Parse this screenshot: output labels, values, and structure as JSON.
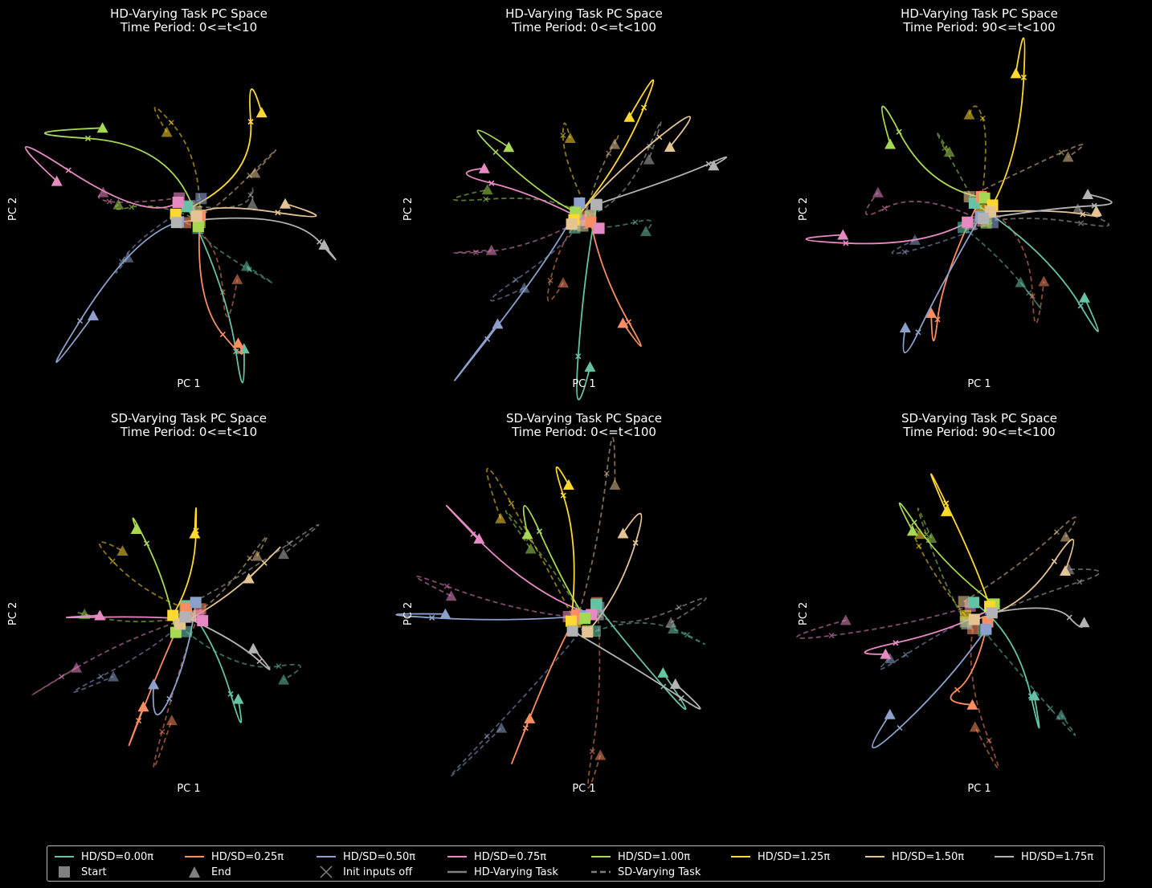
{
  "colors": {
    "hd_0_00": "#66c2a5",
    "hd_0_25": "#fc8d62",
    "hd_0_50": "#8da0cb",
    "hd_0_75": "#e78ac3",
    "hd_1_00": "#a6d854",
    "hd_1_25": "#ffd92f",
    "hd_1_50": "#e5c494",
    "hd_1_75": "#b3b3b3"
  },
  "chart_data": [
    {
      "type": "line",
      "title": "HD-Varying Task PC Space\nTime Period: 0<=t<10",
      "title_line1": "HD-Varying Task PC Space",
      "title_line2": "Time Period: 0<=t<10",
      "xlabel": "PC 1",
      "ylabel": "PC 2",
      "grid": false,
      "axes_visible": false
    },
    {
      "type": "line",
      "title": "HD-Varying Task PC Space\nTime Period: 0<=t<100",
      "title_line1": "HD-Varying Task PC Space",
      "title_line2": "Time Period: 0<=t<100",
      "xlabel": "PC 1",
      "ylabel": "PC 2",
      "grid": false,
      "axes_visible": false
    },
    {
      "type": "line",
      "title": "HD-Varying Task PC Space\nTime Period: 90<=t<100",
      "title_line1": "HD-Varying Task PC Space",
      "title_line2": "Time Period: 90<=t<100",
      "xlabel": "PC 1",
      "ylabel": "PC 2",
      "grid": false,
      "axes_visible": false
    },
    {
      "type": "line",
      "title": "SD-Varying Task PC Space\nTime Period: 0<=t<10",
      "title_line1": "SD-Varying Task PC Space",
      "title_line2": "Time Period: 0<=t<10",
      "xlabel": "PC 1",
      "ylabel": "PC 2",
      "grid": false,
      "axes_visible": false
    },
    {
      "type": "line",
      "title": "SD-Varying Task PC Space\nTime Period: 0<=t<100",
      "title_line1": "SD-Varying Task PC Space",
      "title_line2": "Time Period: 0<=t<100",
      "xlabel": "PC 1",
      "ylabel": "PC 2",
      "grid": false,
      "axes_visible": false
    },
    {
      "type": "line",
      "title": "SD-Varying Task PC Space\nTime Period: 90<=t<100",
      "title_line1": "SD-Varying Task PC Space",
      "title_line2": "Time Period: 90<=t<100",
      "xlabel": "PC 1",
      "ylabel": "PC 2",
      "grid": false,
      "axes_visible": false
    }
  ],
  "legend": {
    "placement": "bottom-center",
    "entries": [
      {
        "label": "HD/SD=0.00π",
        "kind": "line",
        "color": "#66c2a5"
      },
      {
        "label": "HD/SD=0.25π",
        "kind": "line",
        "color": "#fc8d62"
      },
      {
        "label": "HD/SD=0.50π",
        "kind": "line",
        "color": "#8da0cb"
      },
      {
        "label": "HD/SD=0.75π",
        "kind": "line",
        "color": "#e78ac3"
      },
      {
        "label": "HD/SD=1.00π",
        "kind": "line",
        "color": "#a6d854"
      },
      {
        "label": "HD/SD=1.25π",
        "kind": "line",
        "color": "#ffd92f"
      },
      {
        "label": "HD/SD=1.50π",
        "kind": "line",
        "color": "#e5c494"
      },
      {
        "label": "HD/SD=1.75π",
        "kind": "line",
        "color": "#b3b3b3"
      },
      {
        "label": "Start",
        "kind": "square",
        "color": "#808080"
      },
      {
        "label": "End",
        "kind": "triangle",
        "color": "#808080"
      },
      {
        "label": "Init inputs off",
        "kind": "x",
        "color": "#808080"
      },
      {
        "label": "HD-Varying Task",
        "kind": "solid",
        "color": "#808080"
      },
      {
        "label": "SD-Varying Task",
        "kind": "dashed",
        "color": "#808080"
      }
    ]
  }
}
